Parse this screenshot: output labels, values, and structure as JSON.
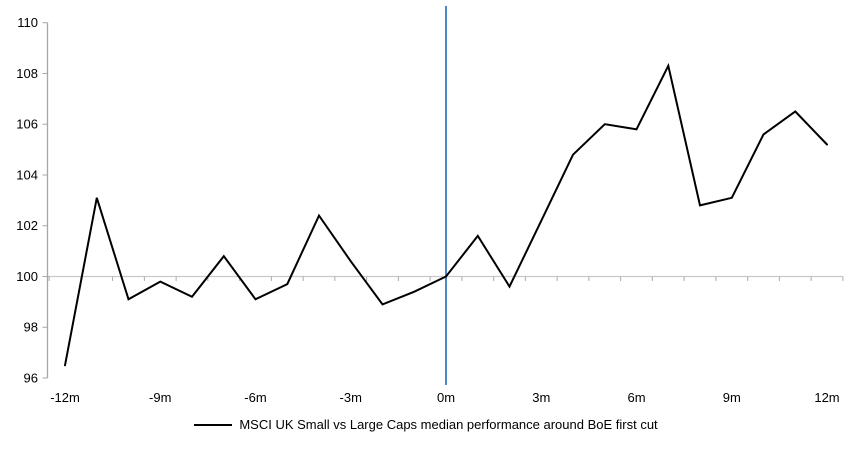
{
  "chart_data": {
    "type": "line",
    "title": "",
    "xlabel": "",
    "ylabel": "",
    "x": [
      -12,
      -11,
      -10,
      -9,
      -8,
      -7,
      -6,
      -5,
      -4,
      -3,
      -2,
      -1,
      0,
      1,
      2,
      3,
      4,
      5,
      6,
      7,
      8,
      9,
      10,
      11,
      12
    ],
    "series": [
      {
        "name": "MSCI UK Small vs Large Caps median performance around BoE first cut",
        "color": "#000000",
        "values": [
          96.5,
          103.1,
          99.1,
          99.8,
          99.2,
          100.8,
          99.1,
          99.7,
          102.4,
          100.6,
          98.9,
          99.4,
          100.0,
          101.6,
          99.6,
          102.2,
          104.8,
          106.0,
          105.8,
          108.3,
          102.8,
          103.1,
          105.6,
          106.5,
          105.2
        ]
      }
    ],
    "x_tick_positions": [
      -12,
      -9,
      -6,
      -3,
      0,
      3,
      6,
      9,
      12
    ],
    "x_tick_labels": [
      "-12m",
      "-9m",
      "-6m",
      "-3m",
      "0m",
      "3m",
      "6m",
      "9m",
      "12m"
    ],
    "y_ticks": [
      96,
      98,
      100,
      102,
      104,
      106,
      108,
      110
    ],
    "ylim": [
      96,
      110
    ],
    "xlim": [
      -12.5,
      12.5
    ],
    "grid": "none",
    "legend_position": "bottom",
    "baseline_value": 100,
    "event_line_x": 0,
    "colors": {
      "series_line": "#000000",
      "event_line": "#4F86C5",
      "axis": "#A6A6A6",
      "baseline": "#C9C9C9",
      "tick": "#ABABAB"
    }
  }
}
